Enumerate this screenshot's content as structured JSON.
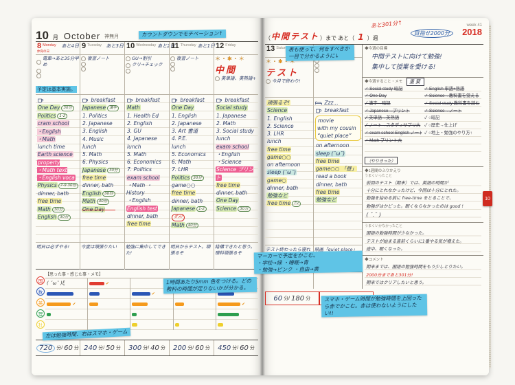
{
  "left": {
    "month": {
      "num": "10",
      "suffix": "月",
      "name": "October",
      "kanji": "神無月"
    },
    "sticky_top": "カウントダウンでモチベーション↑",
    "days": [
      {
        "num": "8",
        "wd": "Monday",
        "holiday": "体育の日",
        "red": true,
        "countdown": "あと4日",
        "todos": [
          "電車→あと35分早め"
        ],
        "banner": "予定は基本実施。",
        "sched": [
          {
            "ic": "cup",
            "t": ""
          },
          {
            "t": "One Day",
            "h": "g",
            "o": "30分"
          },
          {
            "t": "Politics",
            "h": "g",
            "o": "1-2"
          },
          {
            "t": "cram school\n・English\n・Math",
            "h": "p"
          },
          {
            "t": "lunch time"
          },
          {
            "t": "Earth science",
            "h": "p"
          },
          {
            "t": "property\n・Math text\n・English voca",
            "block": true
          },
          {
            "t": "Physics",
            "h": "g",
            "o": "7-9 30分"
          },
          {
            "t": "dinner, bath"
          },
          {
            "t": "free time",
            "h": "y"
          },
          {
            "t": "Math",
            "h": "g",
            "o": "30分"
          },
          {
            "t": "English",
            "h": "g",
            "o": "30分"
          }
        ],
        "note": "明日は必ずやる!"
      },
      {
        "num": "9",
        "wd": "Tuesday",
        "red": false,
        "countdown": "あと3日",
        "todos": [
          "復習ノート"
        ],
        "sched": [
          {
            "ic": "cup",
            "t": "breakfast"
          },
          {
            "t": "Japanese",
            "h": "g",
            "o": "漢字"
          },
          {
            "t": "1. Politics"
          },
          {
            "t": "2. Japanese"
          },
          {
            "t": "3. English"
          },
          {
            "t": "4. Music"
          },
          {
            "t": "lunch"
          },
          {
            "t": "5. Math"
          },
          {
            "t": "6. Physics"
          },
          {
            "t": "Japanese",
            "h": "g",
            "o": "30分"
          },
          {
            "t": "free time",
            "h": "y"
          },
          {
            "t": "dinner, bath"
          },
          {
            "t": "English",
            "h": "g",
            "o": "30分"
          },
          {
            "t": "Math",
            "h": "g",
            "o": "40分"
          },
          {
            "t": "One Day",
            "h": "g",
            "strike": true
          }
        ],
        "note": "今度は頑張りたい"
      },
      {
        "num": "10",
        "wd": "Wednesday",
        "red": false,
        "countdown": "あと2日",
        "todos": [
          "GU→割引",
          "クリ→チェック"
        ],
        "sched": [
          {
            "ic": "cup",
            "t": "breakfast"
          },
          {
            "t": "Math",
            "h": "g"
          },
          {
            "t": "1. Health Ed"
          },
          {
            "t": "2. English"
          },
          {
            "t": "3. GU"
          },
          {
            "t": "4. Japanese"
          },
          {
            "t": "lunch"
          },
          {
            "t": "5. Math"
          },
          {
            "t": "6. Economics"
          },
          {
            "t": "7. Politics"
          },
          {
            "t": "exam school",
            "h": "p"
          },
          {
            "t": "・Math ・History"
          },
          {
            "t": "・English"
          },
          {
            "t": "English test",
            "block": true
          },
          {
            "t": "dinner, bath"
          },
          {
            "t": "free time",
            "h": "y"
          }
        ],
        "note": "勉強に集中してできた!"
      },
      {
        "num": "11",
        "wd": "Thursday",
        "red": false,
        "countdown": "あと1日",
        "todos": [
          "復習ノート"
        ],
        "sched": [
          {
            "ic": "cup",
            "t": "breakfast"
          },
          {
            "t": "One Day",
            "h": "g"
          },
          {
            "t": "1. English"
          },
          {
            "t": "2. Japanese"
          },
          {
            "t": "3. Art 書道"
          },
          {
            "t": "4. P.E."
          },
          {
            "t": "lunch"
          },
          {
            "t": "5. Economics"
          },
          {
            "t": "6. Math"
          },
          {
            "t": "7. LHR"
          },
          {
            "t": "Politics",
            "h": "g",
            "o": "30分"
          },
          {
            "t": "game○○"
          },
          {
            "t": "free time",
            "h": "y"
          },
          {
            "t": "dinner, bath"
          },
          {
            "t": "Japanese",
            "h": "g",
            "o": "1-2",
            "mark": "ダメ!"
          },
          {
            "t": "Math",
            "h": "g",
            "o": "40分"
          }
        ],
        "note": "明日からテスト。頑張るぞ"
      },
      {
        "num": "12",
        "wd": "Friday",
        "red": false,
        "deco": "＊・✱・＊",
        "bigmark": "中間",
        "todos": [
          "英単語、英熟語+"
        ],
        "sched": [
          {
            "ic": "cup",
            "t": "breakfast"
          },
          {
            "t": "Social study",
            "h": "g"
          },
          {
            "t": "1. Japanese"
          },
          {
            "t": "2. Math"
          },
          {
            "t": "3. Social study"
          },
          {
            "t": "lunch"
          },
          {
            "t": "exam school",
            "h": "p"
          },
          {
            "t": "・English"
          },
          {
            "t": "・Science"
          },
          {
            "t": "Science プリント",
            "block": true
          },
          {
            "t": "free time",
            "h": "y"
          },
          {
            "t": "dinner, bath"
          },
          {
            "t": "One Day",
            "h": "g"
          },
          {
            "t": "Science",
            "h": "g",
            "o": "30分"
          }
        ],
        "note": "結構できたと思う。理科頑張るぞ"
      }
    ],
    "memo": {
      "header": "【思った事・感じた事・メモ】",
      "subjects": [
        {
          "label": "国",
          "color": "#e03c31"
        },
        {
          "label": "数",
          "color": "#2b56b5"
        },
        {
          "label": "英",
          "color": "#f59a1c"
        },
        {
          "label": "理",
          "color": "#2e9e4f"
        },
        {
          "label": "社",
          "color": "#eecf2c"
        }
      ],
      "emoticon": "( ˘ω˘ )ξ",
      "bars": [
        {
          "v": [
            0,
            68,
            62,
            10,
            0
          ],
          "thumbs": [
            2
          ],
          "emo": true
        },
        {
          "v": [
            38,
            26,
            22,
            0,
            0
          ],
          "thumbs": [
            0
          ]
        },
        {
          "v": [
            0,
            46,
            40,
            12,
            14
          ],
          "thumbs": [
            1
          ]
        },
        {
          "v": [
            28,
            0,
            24,
            0,
            12
          ],
          "thumbs": [
            0
          ]
        },
        {
          "v": [
            60,
            42,
            58,
            55,
            14
          ],
          "thumbs": [
            2
          ]
        }
      ],
      "sticky1": "1時間あたり5mm 色をつける。どの教科の時間が足りないかが分かる。",
      "sticky2": "左は勉強時間、右はスマホ・ゲーム"
    },
    "totals": [
      {
        "study": "720",
        "play": "60",
        "unit": "分/",
        "unit2": "分",
        "circled": true
      },
      {
        "study": "240",
        "play": "50",
        "unit": "分/",
        "unit2": "分"
      },
      {
        "study": "300",
        "play": "40",
        "unit": "分/",
        "unit2": "分"
      },
      {
        "study": "200",
        "play": "60",
        "unit": "分/",
        "unit2": "分"
      },
      {
        "study": "450",
        "play": "60",
        "unit": "分/",
        "unit2": "分"
      }
    ]
  },
  "right": {
    "header": {
      "pre": "（",
      "test": "中間テスト",
      "mid": "）まで あと（",
      "weeks": "1",
      "post": "）週",
      "note1": "あと301分↑",
      "note2": "目指せ2000分",
      "week": "week 41",
      "year": "2018"
    },
    "days": [
      {
        "num": "13",
        "wd": "Saturday",
        "red": false,
        "deco": "＊・✱・＊",
        "bigmark": "テスト",
        "todos": [
          "今月で終わり!"
        ],
        "sched": [
          {
            "t": "頑張るぞ!",
            "h": "y"
          },
          {
            "t": "Science",
            "h": "g"
          },
          {
            "t": "1. English"
          },
          {
            "t": "2. Science"
          },
          {
            "t": "3. LHR"
          },
          {
            "t": "lunch"
          },
          {
            "t": "free time",
            "h": "y"
          },
          {
            "t": "game○○",
            "h": "y"
          },
          {
            "t": "on afternoon"
          },
          {
            "t": "sleep (˘ω˘)",
            "h": "t"
          },
          {
            "t": "game○",
            "h": "y"
          },
          {
            "t": "dinner, bath"
          },
          {
            "t": "勉強など",
            "h": "g"
          },
          {
            "t": "free time",
            "h": "y",
            "o": "TV"
          }
        ],
        "note": "テスト終わったら寝れる〜!"
      },
      {
        "num": "14",
        "wd": "Sunday",
        "red": true,
        "todos": [],
        "sched": [
          {
            "ic": "bed",
            "t": "Zzz..."
          },
          {
            "ic": "cup",
            "t": "breakfast"
          },
          {
            "t": "movie\nwith my cousin\n“quiet place”",
            "burst": true
          },
          {
            "t": "on afternoon"
          },
          {
            "t": "sleep (˘ω˘)",
            "h": "t"
          },
          {
            "t": "free time",
            "h": "y"
          },
          {
            "t": "game○○ 「昼」",
            "h": "y"
          },
          {
            "t": "read a book"
          },
          {
            "t": "dinner, bath"
          },
          {
            "t": "free time",
            "h": "y"
          },
          {
            "t": "勉強など",
            "h": "g"
          }
        ],
        "note": "映画「quiet place」面白かった。"
      }
    ],
    "panel": {
      "goal_label": "◆今週の目標",
      "goal_lines": [
        "中間テストに向けて勉強!",
        "集中して授業を受ける!"
      ],
      "tasks_label": "◆今週すること・メモ",
      "important": "重要",
      "tasks_col1": [
        {
          "t": "Social study 暗記",
          "done": true
        },
        {
          "t": "One Day",
          "done": true
        },
        {
          "t": "漢字→暗記",
          "done": true
        },
        {
          "t": "Japanese→プリント",
          "done": true
        },
        {
          "t": "英単語→英熟語",
          "done": true
        },
        {
          "t": "ノート→スタディサプリ大",
          "done": true
        },
        {
          "t": "exam school English ノート",
          "done": true
        },
        {
          "t": "Math プリント大",
          "done": true
        }
      ],
      "tasks_col2": [
        {
          "t": "English 単語+熟語",
          "done": true
        },
        {
          "t": "Science→教科書を覚える",
          "done": true
        },
        {
          "t": "Social study 教科書を読む",
          "done": true
        },
        {
          "t": "Science→ノート",
          "done": true
        },
        {
          "t": "○暗記",
          "done": false
        },
        {
          "t": "○歴史→仕上げ",
          "done": false
        },
        {
          "t": "○地上・勉強のやり方↑",
          "done": false
        }
      ],
      "tasks_foot": "（やりきった）",
      "reflect_label": "◆1週間のふりかえり",
      "good_label": "うまくいったこと",
      "good_lines": [
        "前回のテスト（期末）では、英語の時間が",
        "十分にとれなかったけど、今回は十分にとれた。",
        "勉強を始める前に free-time をとることで、",
        "勉強がはかどった。眠くならなかったのは good !"
      ],
      "good_face": "( ˘.˘ )",
      "bad_label": "うまくいかなかったこと",
      "bad_lines": [
        "国語の勉強時間が少なかった。",
        "テストが始まる直前くらいに1番やる気が増えた。",
        "途中、眠くなった。"
      ],
      "comment_label": "◆コメント",
      "comment_lines": [
        {
          "t": "期末までは、国語の勉強時間をもう少しとりたい。",
          "red": false
        },
        {
          "t": "2000分まであと301分!",
          "red": true
        },
        {
          "t": "期末ではクリアしたいと思う。",
          "red": false
        }
      ],
      "sticky_table": "表も使って、何をすべきか一目で分かるように↓",
      "sticky_markers": "マーカーで予定をかこむ。\n・学校→緑 ・睡眠→青\n・勉強→ピンク ・自由→黄",
      "sticky_red": "スマホ・ゲーム時間が勉強時間を上回ったら赤でかこむ。赤は使わないようにしたい!!"
    },
    "memo_bars": [
      {
        "v": [
          18,
          22,
          40,
          52,
          12
        ],
        "thumbs": []
      },
      {
        "v": [
          0,
          0,
          28,
          0,
          0
        ],
        "thumbs": []
      }
    ],
    "totals": [
      {
        "study": "60",
        "play": "180",
        "unit": "分/",
        "unit2": "分",
        "redbox": true
      },
      {
        "study": "60",
        "play": "150",
        "unit": "分/",
        "unit2": "分",
        "redbox": true
      }
    ],
    "tab": "10"
  }
}
